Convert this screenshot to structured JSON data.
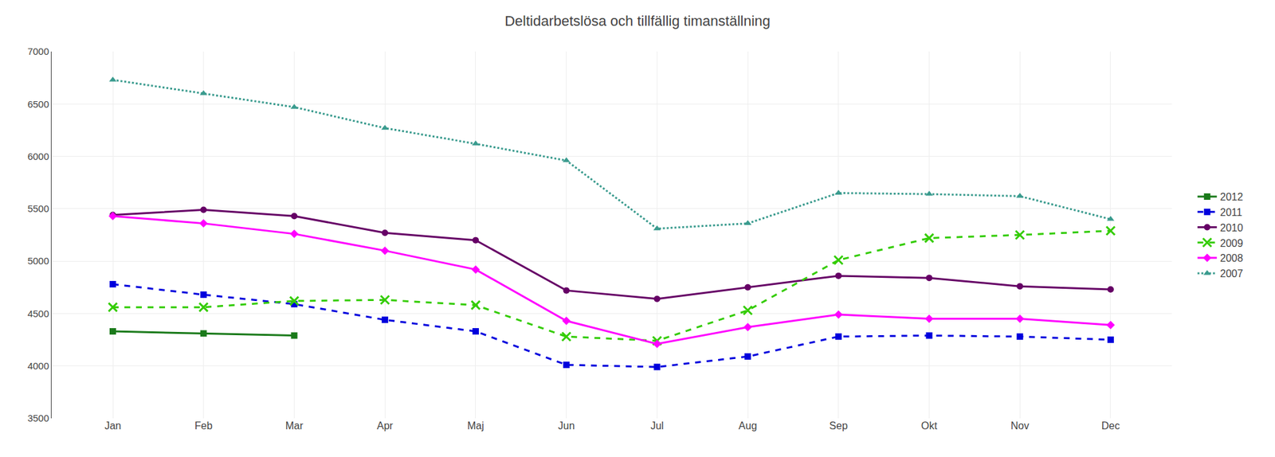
{
  "chart_data": {
    "type": "line",
    "title": "Deltidarbetslösa och tillfällig timanställning",
    "categories": [
      "Jan",
      "Feb",
      "Mar",
      "Apr",
      "Maj",
      "Jun",
      "Jul",
      "Aug",
      "Sep",
      "Okt",
      "Nov",
      "Dec"
    ],
    "series": [
      {
        "name": "2012",
        "color": "#1a7a1a",
        "marker": "square",
        "line_style": "solid",
        "values": [
          4330,
          4310,
          4290,
          null,
          null,
          null,
          null,
          null,
          null,
          null,
          null,
          null
        ]
      },
      {
        "name": "2011",
        "color": "#0000dd",
        "marker": "square",
        "line_style": "dashed",
        "values": [
          4780,
          4680,
          4590,
          4440,
          4330,
          4010,
          3990,
          4090,
          4280,
          4290,
          4280,
          4250
        ]
      },
      {
        "name": "2010",
        "color": "#660066",
        "marker": "circle",
        "line_style": "solid",
        "values": [
          5440,
          5490,
          5430,
          5270,
          5200,
          4720,
          4640,
          4750,
          4860,
          4840,
          4760,
          4730
        ]
      },
      {
        "name": "2009",
        "color": "#33cc00",
        "marker": "x",
        "line_style": "dashed",
        "values": [
          4560,
          4560,
          4620,
          4630,
          4580,
          4280,
          4240,
          4530,
          5010,
          5220,
          5250,
          5290
        ]
      },
      {
        "name": "2008",
        "color": "#ff00ff",
        "marker": "diamond",
        "line_style": "solid",
        "values": [
          5430,
          5360,
          5260,
          5100,
          4920,
          4430,
          4210,
          4370,
          4490,
          4450,
          4450,
          4390
        ]
      },
      {
        "name": "2007",
        "color": "#3a9b8e",
        "marker": "triangle-up",
        "line_style": "dotted",
        "values": [
          6730,
          6600,
          6470,
          6270,
          6120,
          5960,
          5310,
          5360,
          5650,
          5640,
          5620,
          5400
        ]
      }
    ],
    "ylim": [
      3500,
      7000
    ],
    "yticks": [
      3500,
      4000,
      4500,
      5000,
      5500,
      6000,
      6500,
      7000
    ],
    "grid": true,
    "legend": "right"
  }
}
